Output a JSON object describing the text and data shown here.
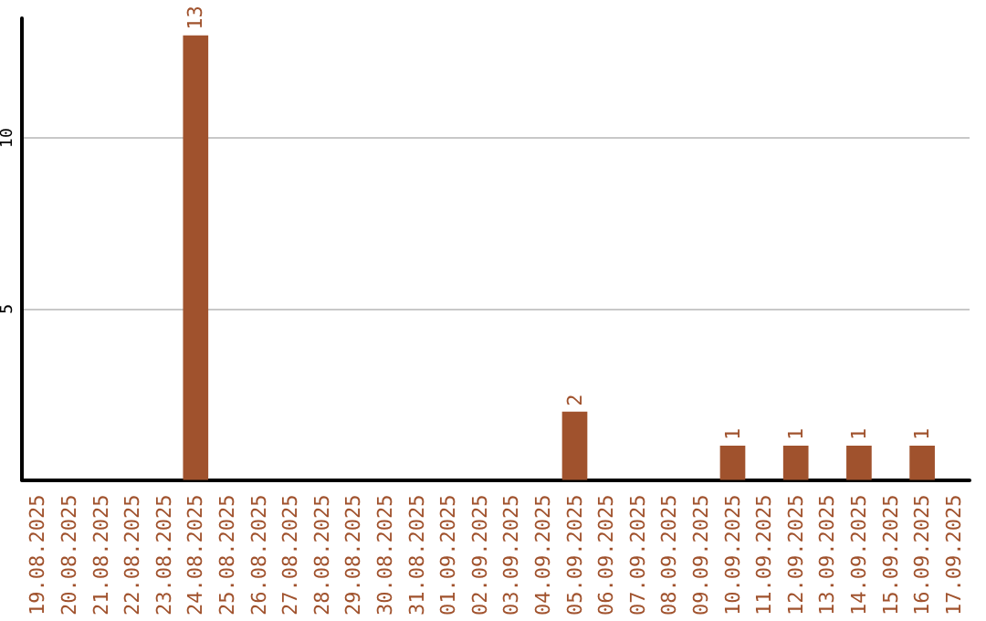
{
  "chart_data": {
    "type": "bar",
    "categories": [
      "19.08.2025",
      "20.08.2025",
      "21.08.2025",
      "22.08.2025",
      "23.08.2025",
      "24.08.2025",
      "25.08.2025",
      "26.08.2025",
      "27.08.2025",
      "28.08.2025",
      "29.08.2025",
      "30.08.2025",
      "31.08.2025",
      "01.09.2025",
      "02.09.2025",
      "03.09.2025",
      "04.09.2025",
      "05.09.2025",
      "06.09.2025",
      "07.09.2025",
      "08.09.2025",
      "09.09.2025",
      "10.09.2025",
      "11.09.2025",
      "12.09.2025",
      "13.09.2025",
      "14.09.2025",
      "15.09.2025",
      "16.09.2025",
      "17.09.2025"
    ],
    "values": [
      0,
      0,
      0,
      0,
      0,
      13,
      0,
      0,
      0,
      0,
      0,
      0,
      0,
      0,
      0,
      0,
      0,
      2,
      0,
      0,
      0,
      0,
      1,
      0,
      1,
      0,
      1,
      0,
      1,
      0
    ],
    "value_labels": [
      null,
      null,
      null,
      null,
      null,
      "13",
      null,
      null,
      null,
      null,
      null,
      null,
      null,
      null,
      null,
      null,
      null,
      "2",
      null,
      null,
      null,
      null,
      "1",
      null,
      "1",
      null,
      "1",
      null,
      "1",
      null
    ],
    "color": "#a0522d",
    "ylim": [
      0,
      13.5
    ],
    "yticks": [
      5,
      10
    ],
    "grid": "y"
  }
}
